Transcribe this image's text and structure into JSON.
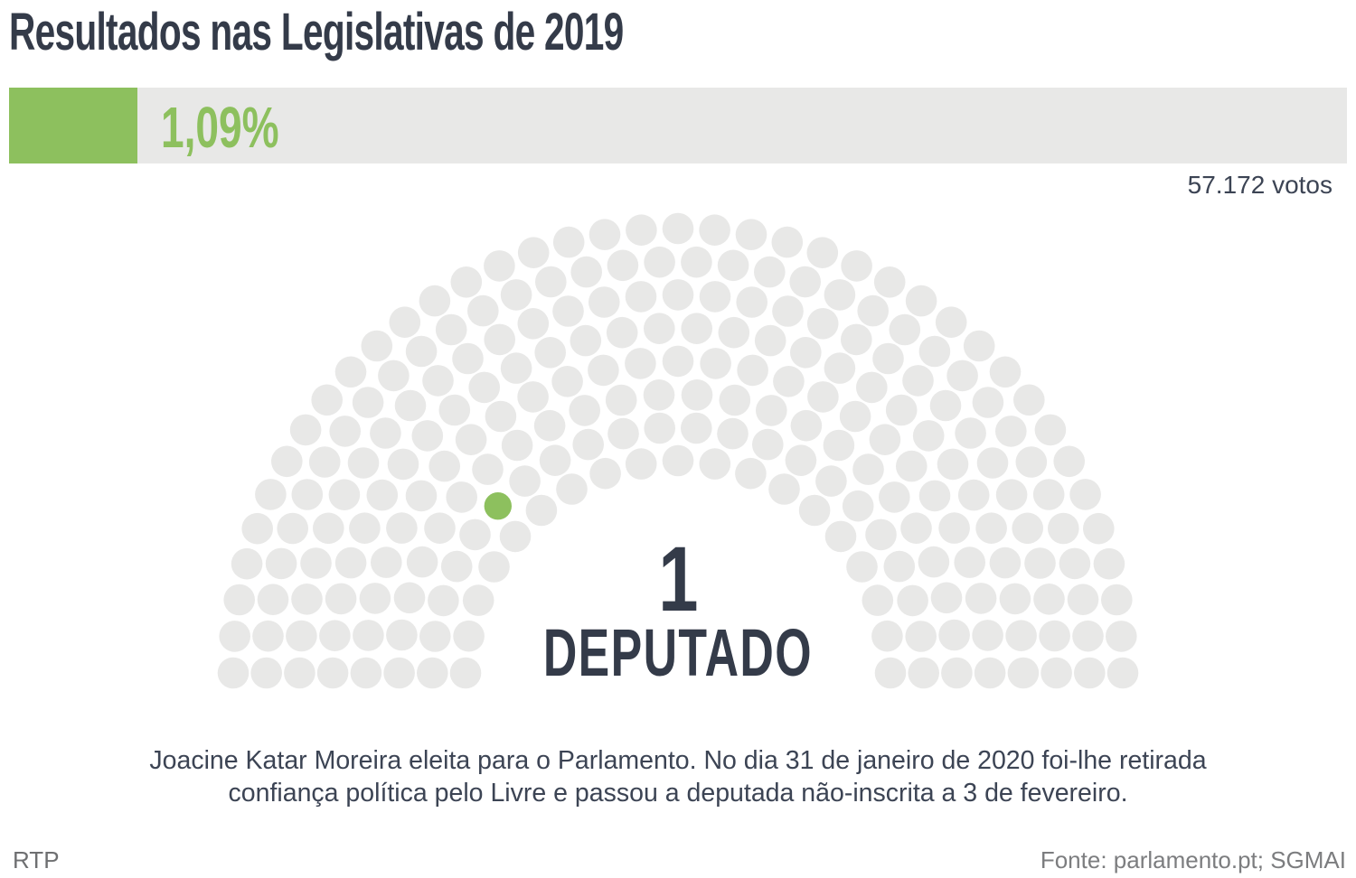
{
  "header": {
    "title": "Resultados nas Legislativas de 2019"
  },
  "result_bar": {
    "percent_label": "1,09%",
    "percent_value": 1.09,
    "fill_color": "#8dc05e",
    "track_color": "#e8e8e7"
  },
  "votes": {
    "label": "57.172 votos"
  },
  "chart_data": {
    "type": "parliament",
    "title": "Resultados nas Legislativas de 2019",
    "total_seats": 230,
    "highlighted_seats": 1,
    "party_percent": "1,09%",
    "party_votes": "57.172 votos",
    "seat_color_default": "#e8e8e7",
    "seat_color_highlight": "#8dc05e",
    "rows": 8,
    "seats_per_row": [
      19,
      22,
      24,
      27,
      30,
      33,
      36,
      39
    ],
    "highlight_position": {
      "row": 1,
      "seat": 5
    },
    "center_label_number": "1",
    "center_label_caption": "DEPUTADO",
    "legend_position": "none",
    "grid": false
  },
  "center_label": {
    "number": "1",
    "caption": "DEPUTADO"
  },
  "caption": {
    "line1": "Joacine Katar Moreira eleita para o Parlamento. No dia 31 de janeiro de 2020 foi-lhe retirada",
    "line2": "confiança política pelo Livre e passou a deputada não-inscrita a 3 de fevereiro."
  },
  "footer": {
    "brand": "RTP",
    "source": "Fonte: parlamento.pt; SGMAI"
  }
}
